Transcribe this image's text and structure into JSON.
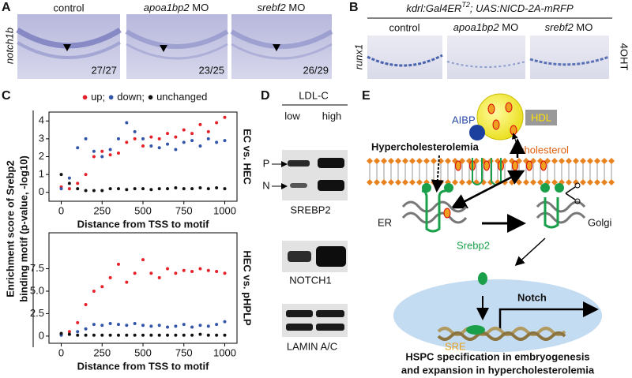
{
  "panels": {
    "A": {
      "letter": "A",
      "ylabel": "notch1b",
      "images": [
        {
          "title": "control",
          "count": "27/27"
        },
        {
          "gene": "apoa1bp2",
          "suffix": "MO",
          "count": "23/25"
        },
        {
          "gene": "srebf2",
          "suffix": "MO",
          "count": "26/29"
        }
      ]
    },
    "B": {
      "letter": "B",
      "header": {
        "main": "kdrl:Gal4ER",
        "sup": "T2",
        "rest": "; UAS:NICD-2A-mRFP"
      },
      "ylabel": "runx1",
      "side": "4OHT",
      "images": [
        {
          "title": "control"
        },
        {
          "gene": "apoa1bp2",
          "suffix": "MO"
        },
        {
          "gene": "srebf2",
          "suffix": "MO"
        }
      ]
    },
    "C": {
      "letter": "C",
      "ylabel": [
        "Enrichment score of Srebp2",
        "binding motif (p-value, -log10)"
      ]
    },
    "D": {
      "letter": "D",
      "header": "LDL-C",
      "lanes": [
        "low",
        "high"
      ],
      "bands": [
        "P",
        "N"
      ],
      "blots": [
        "SREBP2",
        "NOTCH1",
        "LAMIN A/C"
      ]
    },
    "E": {
      "letter": "E",
      "labels": {
        "aibp": "AIBP",
        "hdl": "HDL",
        "cholesterol": "cholesterol",
        "hyper": "Hypercholesterolemia",
        "er": "ER",
        "golgi": "Golgi",
        "srebp2": "Srebp2",
        "notch": "Notch",
        "sre": "SRE"
      },
      "caption": [
        "HSPC specification in embryogenesis",
        "and expansion in hypercholesterolemia"
      ]
    }
  },
  "chart_data": [
    {
      "type": "scatter",
      "side_label": "EC vs. HEC",
      "xlabel": "Distance from TSS to motif",
      "x": [
        0,
        50,
        100,
        150,
        200,
        250,
        300,
        350,
        400,
        450,
        500,
        550,
        600,
        650,
        700,
        750,
        800,
        850,
        900,
        950,
        1000
      ],
      "series": [
        {
          "name": "up",
          "color": "#e8202a",
          "values": [
            0.3,
            0.2,
            0.5,
            1.0,
            2.0,
            2.3,
            2.1,
            2.2,
            2.8,
            3.0,
            2.6,
            3.1,
            3.0,
            3.3,
            3.1,
            3.5,
            3.3,
            3.8,
            3.4,
            3.9,
            4.2
          ]
        },
        {
          "name": "down",
          "color": "#3355a8",
          "values": [
            0.2,
            0.8,
            2.5,
            3.0,
            2.3,
            2.0,
            2.4,
            3.0,
            3.9,
            3.4,
            3.0,
            2.6,
            2.5,
            2.7,
            2.4,
            2.8,
            2.9,
            2.6,
            3.0,
            2.8,
            2.9
          ]
        },
        {
          "name": "unchanged",
          "color": "#111111",
          "values": [
            1.0,
            0.5,
            0.2,
            0.1,
            0.1,
            0.1,
            0.2,
            0.2,
            0.15,
            0.2,
            0.2,
            0.15,
            0.2,
            0.2,
            0.25,
            0.2,
            0.2,
            0.25,
            0.2,
            0.25,
            0.2
          ]
        }
      ],
      "xlim": [
        -75,
        1075
      ],
      "ylim": [
        -0.5,
        4.5
      ],
      "xticks": [
        0,
        250,
        500,
        750,
        1000
      ],
      "yticks": [
        0,
        1,
        2,
        3,
        4
      ]
    },
    {
      "type": "scatter",
      "side_label": "HEC vs. pHPLP",
      "xlabel": "Distance from TSS to motif",
      "x": [
        0,
        50,
        100,
        150,
        200,
        250,
        300,
        350,
        400,
        450,
        500,
        550,
        600,
        650,
        700,
        750,
        800,
        850,
        900,
        950,
        1000
      ],
      "series": [
        {
          "color": "#e8202a",
          "values": [
            0.2,
            0.5,
            1.5,
            3.5,
            5.0,
            5.5,
            6.5,
            8.0,
            6.0,
            7.0,
            8.5,
            7.0,
            6.5,
            7.5,
            7.0,
            7.3,
            7.2,
            7.5,
            7.3,
            7.2,
            7.0
          ]
        },
        {
          "color": "#3355a8",
          "values": [
            0.1,
            0.2,
            0.5,
            0.8,
            1.3,
            1.2,
            1.4,
            1.3,
            1.2,
            1.4,
            1.2,
            1.1,
            1.2,
            1.0,
            1.1,
            1.3,
            1.0,
            1.2,
            1.1,
            1.3,
            1.6
          ]
        },
        {
          "color": "#111111",
          "values": [
            0.3,
            0.2,
            0.1,
            0.1,
            0.1,
            0.1,
            0.1,
            0.1,
            0.1,
            0.1,
            0.1,
            0.1,
            0.1,
            0.1,
            0.1,
            0.1,
            0.1,
            0.2,
            0.1,
            0.1,
            0.1
          ]
        }
      ],
      "xlim": [
        -75,
        1075
      ],
      "ylim": [
        -0.8,
        11.5
      ],
      "xticks": [
        0,
        250,
        500,
        750,
        1000
      ],
      "yticks": [
        0,
        2.5,
        {
          "value": 5,
          "label": "5.0"
        },
        7.5
      ]
    }
  ]
}
